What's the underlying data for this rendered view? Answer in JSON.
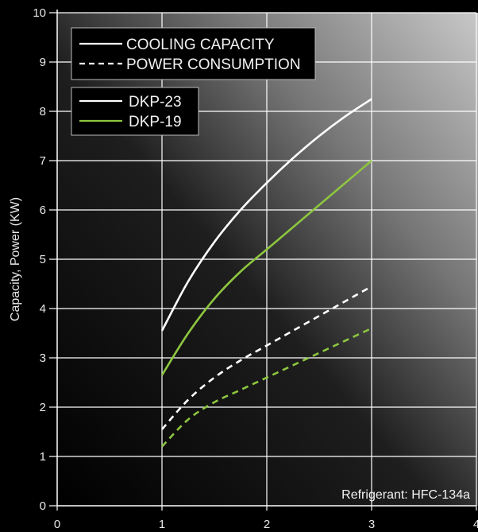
{
  "chart_data": {
    "type": "line",
    "xlabel": "",
    "ylabel": "Capacity, Power (KW)",
    "xlim": [
      0,
      4
    ],
    "ylim": [
      0,
      10
    ],
    "x_ticks": [
      "0",
      "1",
      "2",
      "3",
      "4"
    ],
    "y_ticks": [
      "0",
      "1",
      "2",
      "3",
      "4",
      "5",
      "6",
      "7",
      "8",
      "9",
      "10"
    ],
    "grid": true,
    "annotation": "Refrigerant: HFC-134a",
    "legend_style": {
      "position": "top-left",
      "entries": [
        {
          "label": "COOLING CAPACITY",
          "dash": "solid"
        },
        {
          "label": "POWER CONSUMPTION",
          "dash": "dashed"
        }
      ]
    },
    "legend_model": {
      "position": "top-left",
      "entries": [
        {
          "label": "DKP-23",
          "color": "#ffffff"
        },
        {
          "label": "DKP-19",
          "color": "#8dc63f"
        }
      ]
    },
    "series": [
      {
        "model": "DKP-23",
        "quantity": "COOLING CAPACITY",
        "color": "#ffffff",
        "dash": "solid",
        "x": [
          1.0,
          1.25,
          1.5,
          1.75,
          2.0,
          2.25,
          2.5,
          2.75,
          3.0
        ],
        "y": [
          3.55,
          4.55,
          5.35,
          6.0,
          6.55,
          7.05,
          7.5,
          7.9,
          8.25
        ]
      },
      {
        "model": "DKP-19",
        "quantity": "COOLING CAPACITY",
        "color": "#8dc63f",
        "dash": "solid",
        "x": [
          1.0,
          1.25,
          1.5,
          1.75,
          2.0,
          2.25,
          2.5,
          2.75,
          3.0
        ],
        "y": [
          2.65,
          3.5,
          4.2,
          4.75,
          5.2,
          5.65,
          6.1,
          6.55,
          7.0
        ]
      },
      {
        "model": "DKP-23",
        "quantity": "POWER CONSUMPTION",
        "color": "#ffffff",
        "dash": "dashed",
        "x": [
          1.0,
          1.25,
          1.5,
          1.75,
          2.0,
          2.25,
          2.5,
          2.75,
          3.0
        ],
        "y": [
          1.55,
          2.15,
          2.6,
          2.95,
          3.25,
          3.55,
          3.85,
          4.15,
          4.45
        ]
      },
      {
        "model": "DKP-19",
        "quantity": "POWER CONSUMPTION",
        "color": "#8dc63f",
        "dash": "dashed",
        "x": [
          1.0,
          1.25,
          1.5,
          1.75,
          2.0,
          2.25,
          2.5,
          2.75,
          3.0
        ],
        "y": [
          1.2,
          1.75,
          2.1,
          2.35,
          2.6,
          2.85,
          3.1,
          3.35,
          3.6
        ]
      }
    ]
  }
}
